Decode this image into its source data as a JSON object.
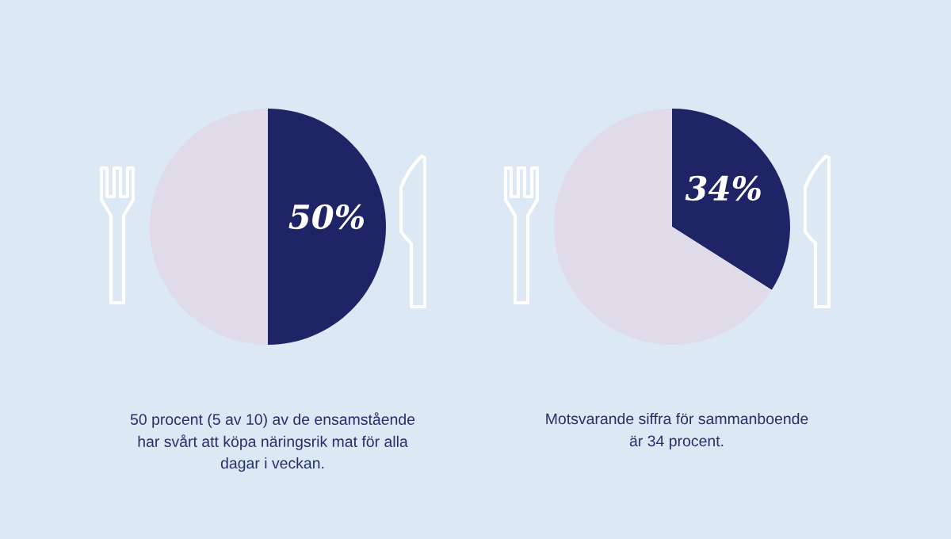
{
  "chart_data": [
    {
      "type": "pie",
      "categories": [
        null,
        null
      ],
      "values": [
        50,
        50
      ],
      "colors": [
        "#1e2466",
        "#e0dbe9"
      ],
      "value_labels": [
        "50%",
        null
      ],
      "annotations": [
        "50 procent (5 av 10) av de ensamstående",
        "har svårt att köpa näringsrik mat för alla",
        "dagar i veckan."
      ]
    },
    {
      "type": "pie",
      "categories": [
        null,
        null
      ],
      "values": [
        34,
        66
      ],
      "colors": [
        "#1e2466",
        "#e0dbe9"
      ],
      "value_labels": [
        "34%",
        null
      ],
      "annotations": [
        "Motsvarande siffra för sammanboende",
        "är 34 procent."
      ]
    }
  ]
}
